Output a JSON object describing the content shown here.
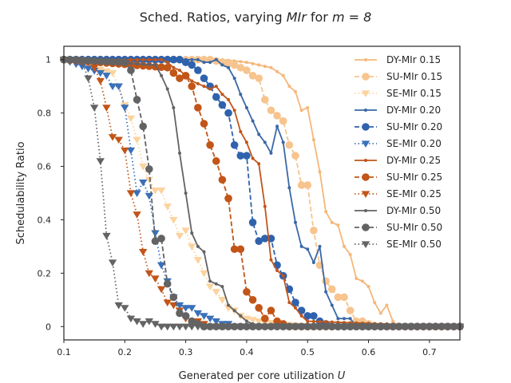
{
  "chart_data": {
    "type": "line",
    "title_prefix": "Sched. Ratios, varying ",
    "title_var": "MIr",
    "title_mid": " for ",
    "title_math": "m = 8",
    "xlabel_prefix": "Generated per core utilization ",
    "xlabel_var": "U",
    "ylabel": "Schedulability Ratio",
    "xlim": [
      0.1,
      0.75
    ],
    "ylim": [
      -0.05,
      1.05
    ],
    "xticks": [
      0.1,
      0.2,
      0.3,
      0.4,
      0.5,
      0.6,
      0.7
    ],
    "xtick_labels": [
      "0.1",
      "0.2",
      "0.3",
      "0.4",
      "0.5",
      "0.6",
      "0.7"
    ],
    "yticks": [
      0,
      0.2,
      0.4,
      0.6,
      0.8,
      1
    ],
    "ytick_labels": [
      "0",
      "0.2",
      "0.4",
      "0.6",
      "0.8",
      "1"
    ],
    "legend_position": "top-right",
    "series": [
      {
        "name": "DY-MIr 0.15",
        "color": "#f5b77a",
        "dash": "solid",
        "marker": "point",
        "x": [
          0.1,
          0.3,
          0.36,
          0.4,
          0.42,
          0.44,
          0.46,
          0.47,
          0.48,
          0.49,
          0.5,
          0.51,
          0.52,
          0.53,
          0.54,
          0.55,
          0.56,
          0.57,
          0.58,
          0.59,
          0.6,
          0.61,
          0.62,
          0.63,
          0.64,
          0.65,
          0.75
        ],
        "y": [
          1,
          1,
          1,
          0.99,
          0.98,
          0.97,
          0.94,
          0.9,
          0.88,
          0.81,
          0.82,
          0.7,
          0.58,
          0.43,
          0.39,
          0.38,
          0.3,
          0.27,
          0.18,
          0.17,
          0.15,
          0.09,
          0.05,
          0.08,
          0.02,
          0,
          0
        ]
      },
      {
        "name": "SU-MIr 0.15",
        "color": "#f7c48e",
        "dash": "dash",
        "marker": "circle",
        "x": [
          0.1,
          0.34,
          0.36,
          0.38,
          0.4,
          0.41,
          0.42,
          0.43,
          0.44,
          0.45,
          0.46,
          0.47,
          0.48,
          0.49,
          0.5,
          0.51,
          0.52,
          0.53,
          0.54,
          0.55,
          0.56,
          0.57,
          0.58,
          0.59,
          0.6,
          0.61,
          0.62,
          0.63,
          0.64,
          0.75
        ],
        "y": [
          1,
          1,
          0.99,
          0.98,
          0.96,
          0.94,
          0.93,
          0.85,
          0.81,
          0.79,
          0.77,
          0.68,
          0.64,
          0.53,
          0.53,
          0.36,
          0.23,
          0.17,
          0.14,
          0.11,
          0.11,
          0.06,
          0.02,
          0.02,
          0.01,
          0,
          0,
          0,
          0,
          0
        ]
      },
      {
        "name": "SE-MIr 0.15",
        "color": "#fcd39e",
        "dash": "dot",
        "marker": "triangle",
        "x": [
          0.1,
          0.18,
          0.19,
          0.2,
          0.21,
          0.22,
          0.23,
          0.24,
          0.25,
          0.26,
          0.27,
          0.28,
          0.29,
          0.3,
          0.31,
          0.32,
          0.33,
          0.34,
          0.35,
          0.36,
          0.37,
          0.38,
          0.39,
          0.4,
          0.42,
          0.45,
          0.5,
          0.75
        ],
        "y": [
          1,
          0.95,
          0.9,
          0.83,
          0.78,
          0.7,
          0.6,
          0.55,
          0.51,
          0.51,
          0.45,
          0.4,
          0.34,
          0.36,
          0.3,
          0.25,
          0.2,
          0.15,
          0.13,
          0.1,
          0.07,
          0.06,
          0.04,
          0.03,
          0.02,
          0.01,
          0,
          0
        ]
      },
      {
        "name": "DY-MIr 0.20",
        "color": "#3a68a6",
        "dash": "solid",
        "marker": "point",
        "x": [
          0.1,
          0.3,
          0.32,
          0.33,
          0.34,
          0.35,
          0.36,
          0.37,
          0.38,
          0.39,
          0.4,
          0.41,
          0.42,
          0.43,
          0.44,
          0.45,
          0.46,
          0.47,
          0.48,
          0.49,
          0.5,
          0.51,
          0.52,
          0.53,
          0.54,
          0.55,
          0.56,
          0.57,
          0.58,
          0.75
        ],
        "y": [
          1,
          1,
          1,
          0.99,
          0.99,
          1,
          0.98,
          0.97,
          0.93,
          0.87,
          0.82,
          0.77,
          0.72,
          0.69,
          0.65,
          0.75,
          0.69,
          0.52,
          0.39,
          0.3,
          0.29,
          0.24,
          0.3,
          0.13,
          0.08,
          0.03,
          0.03,
          0.03,
          0,
          0
        ]
      },
      {
        "name": "SU-MIr 0.20",
        "color": "#2f62ad",
        "dash": "dash",
        "marker": "circle",
        "x": [
          0.1,
          0.29,
          0.3,
          0.31,
          0.32,
          0.33,
          0.34,
          0.35,
          0.36,
          0.37,
          0.38,
          0.39,
          0.4,
          0.41,
          0.42,
          0.43,
          0.44,
          0.45,
          0.46,
          0.47,
          0.48,
          0.49,
          0.5,
          0.51,
          0.52,
          0.53,
          0.54,
          0.75
        ],
        "y": [
          1,
          1,
          0.99,
          0.98,
          0.96,
          0.93,
          0.9,
          0.86,
          0.83,
          0.8,
          0.68,
          0.64,
          0.64,
          0.39,
          0.32,
          0.33,
          0.33,
          0.23,
          0.19,
          0.14,
          0.09,
          0.06,
          0.04,
          0.04,
          0.02,
          0.01,
          0,
          0
        ]
      },
      {
        "name": "SE-MIr 0.20",
        "color": "#3a70b8",
        "dash": "dot",
        "marker": "triangle",
        "x": [
          0.1,
          0.16,
          0.17,
          0.18,
          0.19,
          0.2,
          0.21,
          0.22,
          0.23,
          0.24,
          0.25,
          0.26,
          0.27,
          0.28,
          0.29,
          0.3,
          0.31,
          0.32,
          0.33,
          0.34,
          0.35,
          0.36,
          0.37,
          0.38,
          0.39,
          0.75
        ],
        "y": [
          1,
          0.95,
          0.94,
          0.9,
          0.9,
          0.82,
          0.66,
          0.5,
          0.54,
          0.49,
          0.35,
          0.23,
          0.17,
          0.11,
          0.08,
          0.07,
          0.07,
          0.05,
          0.04,
          0.03,
          0.02,
          0.01,
          0.01,
          0,
          0,
          0
        ]
      },
      {
        "name": "DY-MIr 0.25",
        "color": "#c0561a",
        "dash": "solid",
        "marker": "point",
        "x": [
          0.1,
          0.22,
          0.26,
          0.27,
          0.28,
          0.29,
          0.3,
          0.31,
          0.32,
          0.33,
          0.34,
          0.35,
          0.36,
          0.37,
          0.38,
          0.39,
          0.4,
          0.41,
          0.42,
          0.43,
          0.44,
          0.45,
          0.46,
          0.47,
          0.48,
          0.49,
          0.5,
          0.75
        ],
        "y": [
          1,
          1,
          1,
          0.99,
          0.97,
          0.96,
          0.94,
          0.92,
          0.91,
          0.9,
          0.89,
          0.9,
          0.87,
          0.85,
          0.81,
          0.73,
          0.69,
          0.63,
          0.61,
          0.45,
          0.25,
          0.21,
          0.19,
          0.09,
          0.07,
          0.04,
          0.02,
          0
        ]
      },
      {
        "name": "SU-MIr 0.25",
        "color": "#c25518",
        "dash": "dash",
        "marker": "circle",
        "x": [
          0.1,
          0.27,
          0.28,
          0.29,
          0.3,
          0.31,
          0.32,
          0.33,
          0.34,
          0.35,
          0.36,
          0.37,
          0.38,
          0.39,
          0.4,
          0.41,
          0.42,
          0.43,
          0.44,
          0.45,
          0.46,
          0.47,
          0.48,
          0.49,
          0.5,
          0.75
        ],
        "y": [
          1,
          0.97,
          0.95,
          0.93,
          0.94,
          0.9,
          0.82,
          0.76,
          0.68,
          0.62,
          0.55,
          0.48,
          0.29,
          0.29,
          0.13,
          0.1,
          0.07,
          0.03,
          0.06,
          0.02,
          0.01,
          0,
          0,
          0,
          0,
          0
        ]
      },
      {
        "name": "SE-MIr 0.25",
        "color": "#c25518",
        "dash": "dot",
        "marker": "triangle",
        "x": [
          0.1,
          0.14,
          0.15,
          0.16,
          0.17,
          0.18,
          0.19,
          0.2,
          0.21,
          0.22,
          0.23,
          0.24,
          0.25,
          0.26,
          0.27,
          0.28,
          0.29,
          0.3,
          0.31,
          0.32,
          0.33,
          0.34,
          0.75
        ],
        "y": [
          1,
          0.99,
          0.97,
          0.92,
          0.82,
          0.71,
          0.7,
          0.66,
          0.5,
          0.42,
          0.28,
          0.2,
          0.18,
          0.14,
          0.09,
          0.08,
          0.06,
          0.03,
          0.02,
          0.02,
          0.01,
          0,
          0
        ]
      },
      {
        "name": "DY-MIr 0.50",
        "color": "#636363",
        "dash": "solid",
        "marker": "point",
        "x": [
          0.1,
          0.25,
          0.26,
          0.27,
          0.28,
          0.29,
          0.3,
          0.31,
          0.32,
          0.33,
          0.34,
          0.35,
          0.36,
          0.37,
          0.38,
          0.39,
          0.4,
          0.41,
          0.42,
          0.75
        ],
        "y": [
          1,
          0.98,
          0.94,
          0.89,
          0.82,
          0.65,
          0.5,
          0.35,
          0.3,
          0.28,
          0.17,
          0.16,
          0.15,
          0.08,
          0.06,
          0.04,
          0.02,
          0.01,
          0,
          0
        ]
      },
      {
        "name": "SU-MIr 0.50",
        "color": "#636363",
        "dash": "dash",
        "marker": "circle",
        "x": [
          0.1,
          0.2,
          0.21,
          0.22,
          0.23,
          0.24,
          0.25,
          0.26,
          0.27,
          0.28,
          0.29,
          0.3,
          0.31,
          0.32,
          0.33,
          0.34,
          0.75
        ],
        "y": [
          1,
          0.99,
          0.96,
          0.85,
          0.75,
          0.59,
          0.32,
          0.33,
          0.16,
          0.11,
          0.05,
          0.04,
          0.02,
          0.01,
          0,
          0,
          0
        ]
      },
      {
        "name": "SE-MIr 0.50",
        "color": "#636363",
        "dash": "dot",
        "marker": "triangle",
        "x": [
          0.1,
          0.12,
          0.13,
          0.14,
          0.15,
          0.16,
          0.17,
          0.18,
          0.19,
          0.2,
          0.21,
          0.22,
          0.23,
          0.24,
          0.25,
          0.26,
          0.27,
          0.28,
          0.75
        ],
        "y": [
          1,
          1,
          0.99,
          0.93,
          0.82,
          0.62,
          0.34,
          0.24,
          0.08,
          0.07,
          0.03,
          0.02,
          0.01,
          0.02,
          0.01,
          0,
          0,
          0,
          0
        ]
      }
    ]
  }
}
